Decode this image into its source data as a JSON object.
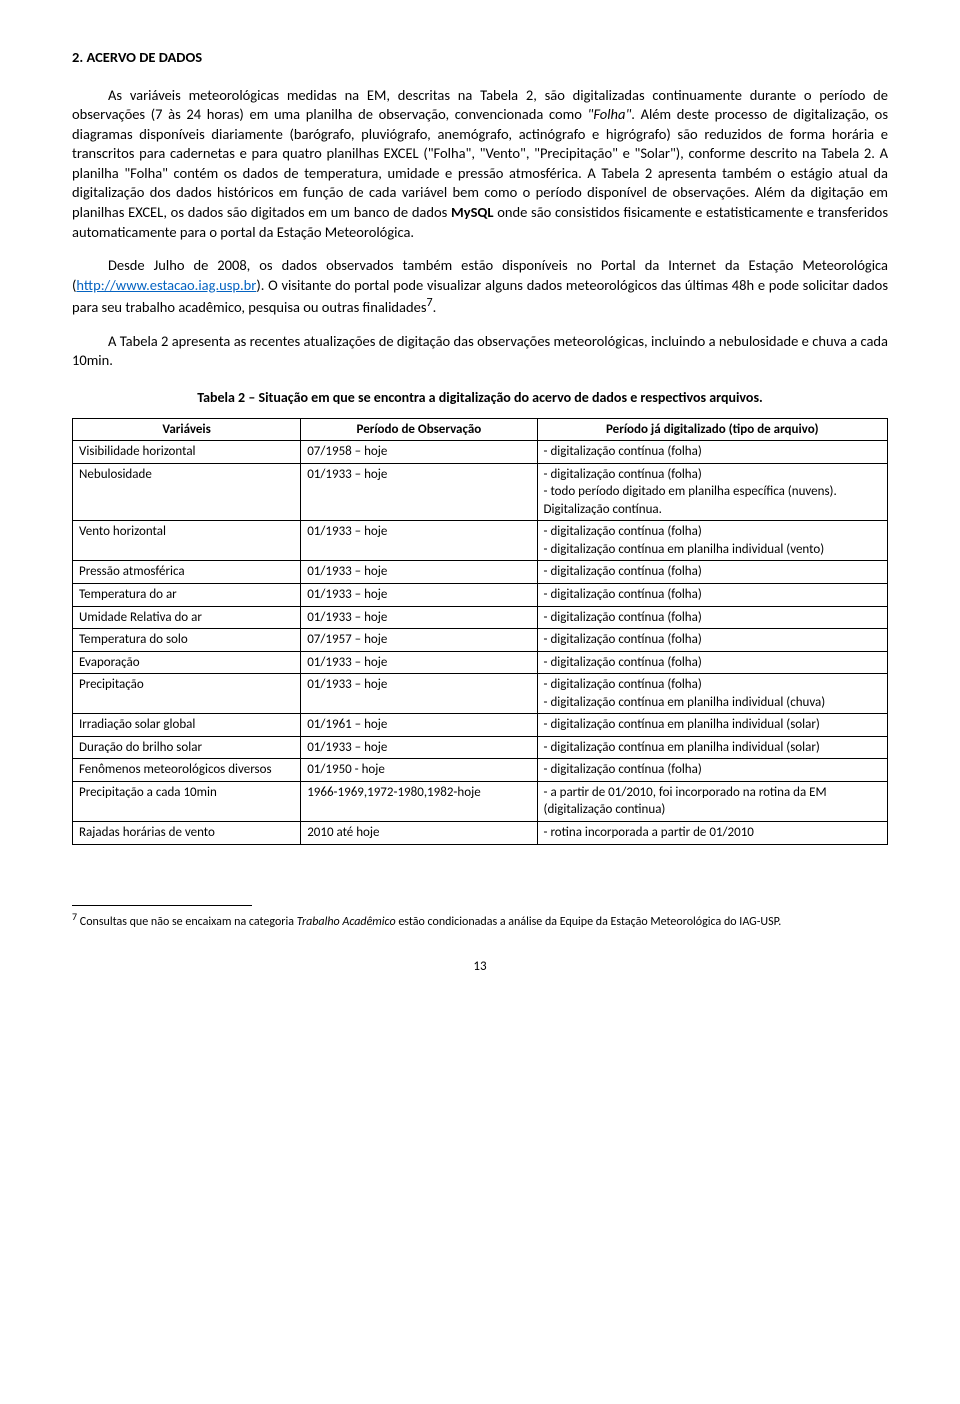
{
  "section": {
    "heading": "2.   ACERVO DE DADOS"
  },
  "paragraphs": {
    "p1a": "As variáveis meteorológicas medidas na EM, descritas na Tabela 2, são digitalizadas continuamente durante o período de observações (7 às 24 horas) em uma planilha de observação, convencionada como ",
    "p1_folha": "\"Folha\"",
    "p1b": ". Além deste processo de digitalização, os diagramas disponíveis diariamente (barógrafo, pluviógrafo, anemógrafo, actinógrafo e higrógrafo) são reduzidos de forma horária e transcritos para cadernetas e para quatro planilhas EXCEL (\"Folha\", \"Vento\", \"Precipitação\" e \"Solar\"), conforme descrito na Tabela 2. A planilha \"Folha\" contém os dados de temperatura, umidade e pressão atmosférica. A Tabela 2 apresenta também o estágio atual da digitalização dos dados históricos em função de cada variável bem como o período disponível de observações. Além da digitação em planilhas EXCEL, os dados são digitados em um banco de dados ",
    "p1_mysql": "MySQL",
    "p1c": " onde são consistidos fisicamente e estatisticamente e transferidos automaticamente para o portal da Estação Meteorológica.",
    "p2a": "Desde Julho de 2008, os dados observados também estão disponíveis no Portal da Internet da Estação Meteorológica (",
    "p2_link": "http://www.estacao.iag.usp.br",
    "p2b": "). O visitante do portal pode visualizar alguns dados meteorológicos das últimas 48h e pode solicitar dados para seu trabalho acadêmico, pesquisa ou outras finalidades",
    "p2_sup": "7",
    "p2c": ".",
    "p3": "A Tabela 2 apresenta as recentes atualizações de digitação das observações meteorológicas, incluindo a nebulosidade e chuva a cada 10min."
  },
  "table": {
    "caption": "Tabela 2 – Situação em que se encontra a digitalização do acervo de dados e respectivos arquivos.",
    "headers": {
      "c1": "Variáveis",
      "c2": "Período de Observação",
      "c3": "Período já digitalizado (tipo de arquivo)"
    },
    "rows": [
      {
        "v": "Visibilidade horizontal",
        "p": "07/1958 – hoje",
        "d": "- digitalização contínua (folha)"
      },
      {
        "v": "Nebulosidade",
        "p": "01/1933 – hoje",
        "d": "- digitalização contínua (folha)\n- todo período digitado em planilha específica (nuvens). Digitalização contínua."
      },
      {
        "v": "Vento horizontal",
        "p": "01/1933 – hoje",
        "d": "- digitalização contínua (folha)\n- digitalização contínua em planilha individual (vento)"
      },
      {
        "v": "Pressão atmosférica",
        "p": "01/1933 – hoje",
        "d": "- digitalização contínua (folha)"
      },
      {
        "v": "Temperatura do ar",
        "p": "01/1933 – hoje",
        "d": "- digitalização contínua (folha)"
      },
      {
        "v": "Umidade Relativa do ar",
        "p": "01/1933 – hoje",
        "d": "- digitalização contínua (folha)"
      },
      {
        "v": "Temperatura do solo",
        "p": "07/1957 – hoje",
        "d": "- digitalização contínua (folha)"
      },
      {
        "v": "Evaporação",
        "p": "01/1933 – hoje",
        "d": "- digitalização contínua (folha)"
      },
      {
        "v": "Precipitação",
        "p": "01/1933 – hoje",
        "d": "- digitalização contínua (folha)\n- digitalização contínua em planilha individual (chuva)"
      },
      {
        "v": "Irradiação solar global",
        "p": "01/1961 – hoje",
        "d": "- digitalização contínua em planilha individual (solar)"
      },
      {
        "v": "Duração do brilho solar",
        "p": "01/1933 – hoje",
        "d": "- digitalização contínua em planilha individual (solar)"
      },
      {
        "v": "Fenômenos meteorológicos diversos",
        "p": "01/1950 - hoje",
        "d": "- digitalização contínua (folha)"
      },
      {
        "v": "Precipitação a cada 10min",
        "p": "1966-1969,1972-1980,1982-hoje",
        "d": "- a partir de 01/2010, foi incorporado na rotina da EM (digitalização continua)"
      },
      {
        "v": "Rajadas horárias de vento",
        "p": "2010 até hoje",
        "d": "- rotina incorporada a partir de 01/2010"
      }
    ]
  },
  "footnote": {
    "marker": "7",
    "text_a": " Consultas que não se encaixam na categoria ",
    "text_italic": "Trabalho Acadêmico",
    "text_b": " estão condicionadas a análise da Equipe da Estação Meteorológica do IAG-USP."
  },
  "page_number": "13"
}
